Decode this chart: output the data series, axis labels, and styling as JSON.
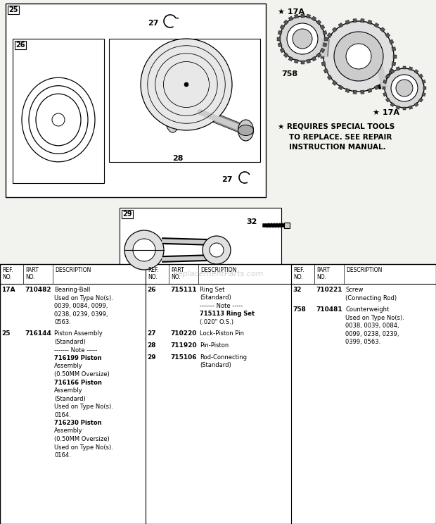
{
  "bg_color": "#f2f2ee",
  "watermark": "ReplacementParts.com",
  "col1_entries": [
    [
      "17A",
      "710482",
      [
        [
          "Bearing-Ball",
          false
        ],
        [
          "Used on Type No(s).",
          false
        ],
        [
          "0039, 0084, 0099,",
          false
        ],
        [
          "0238, 0239, 0399,",
          false
        ],
        [
          "0563.",
          false
        ]
      ]
    ],
    [
      "25",
      "716144",
      [
        [
          "Piston Assembly",
          false
        ],
        [
          "(Standard)",
          false
        ],
        [
          "------- Note -----",
          false
        ],
        [
          "716199 Piston",
          true
        ],
        [
          "Assembly",
          false
        ],
        [
          "(0.50MM Oversize)",
          false
        ],
        [
          "716166 Piston",
          true
        ],
        [
          "Assembly",
          false
        ],
        [
          "(Standard)",
          false
        ],
        [
          "Used on Type No(s).",
          false
        ],
        [
          "0164.",
          false
        ],
        [
          "716230 Piston",
          true
        ],
        [
          "Assembly",
          false
        ],
        [
          "(0.50MM Oversize)",
          false
        ],
        [
          "Used on Type No(s).",
          false
        ],
        [
          "0164.",
          false
        ]
      ]
    ]
  ],
  "col2_entries": [
    [
      "26",
      "715111",
      [
        [
          "Ring Set",
          false
        ],
        [
          "(Standard)",
          false
        ],
        [
          "------- Note -----",
          false
        ],
        [
          "715113 Ring Set",
          true
        ],
        [
          "(.020\" O.S.)",
          false
        ]
      ]
    ],
    [
      "27",
      "710220",
      [
        [
          "Lock-Piston Pin",
          false
        ]
      ]
    ],
    [
      "28",
      "711920",
      [
        [
          "Pin-Piston",
          false
        ]
      ]
    ],
    [
      "29",
      "715106",
      [
        [
          "Rod-Connecting",
          false
        ],
        [
          "(Standard)",
          false
        ]
      ]
    ]
  ],
  "col3_entries": [
    [
      "32",
      "710221",
      [
        [
          "Screw",
          false
        ],
        [
          "(Connecting Rod)",
          false
        ]
      ]
    ],
    [
      "758",
      "710481",
      [
        [
          "Counterweight",
          false
        ],
        [
          "Used on Type No(s).",
          false
        ],
        [
          "0038, 0039, 0084,",
          false
        ],
        [
          "0099, 0238, 0239,",
          false
        ],
        [
          "0399, 0563.",
          false
        ]
      ]
    ]
  ]
}
